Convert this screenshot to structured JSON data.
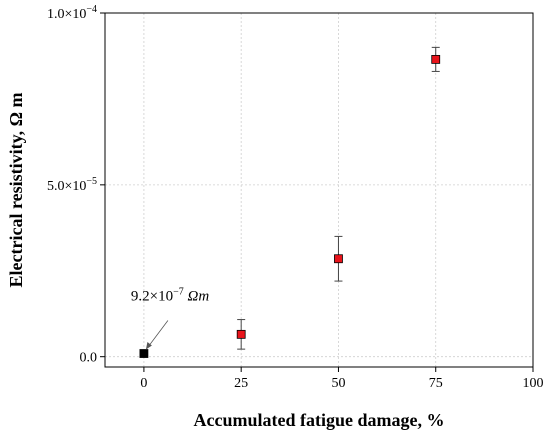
{
  "chart_data": {
    "type": "scatter",
    "title": "",
    "xlabel": "Accumulated fatigue damage, %",
    "ylabel": "Electrical resistivity, Ω m",
    "xlim": [
      -10,
      100
    ],
    "ylim": [
      -3e-06,
      0.0001
    ],
    "x_ticks": [
      0,
      25,
      50,
      75,
      100
    ],
    "x_tick_labels": [
      "0",
      "25",
      "50",
      "75",
      "100"
    ],
    "y_ticks": [
      0,
      5e-05,
      0.0001
    ],
    "y_tick_labels": [
      {
        "mantissa": "0.0",
        "exponent": ""
      },
      {
        "mantissa": "5.0×10",
        "exponent": "−5"
      },
      {
        "mantissa": "1.0×10",
        "exponent": "−4"
      }
    ],
    "grid": true,
    "points": [
      {
        "x": 0,
        "y": 9.2e-07,
        "err": 0,
        "color": "#000000"
      },
      {
        "x": 25,
        "y": 6.5e-06,
        "err": 4.3e-06,
        "color": "#e8141b"
      },
      {
        "x": 50,
        "y": 2.85e-05,
        "err": 6.5e-06,
        "color": "#e8141b"
      },
      {
        "x": 75,
        "y": 8.65e-05,
        "err": 3.5e-06,
        "color": "#e8141b"
      }
    ],
    "annotation": {
      "mantissa": "9.2×10",
      "exponent": "−7",
      "unit": "Ωm",
      "point_index": 0
    }
  }
}
